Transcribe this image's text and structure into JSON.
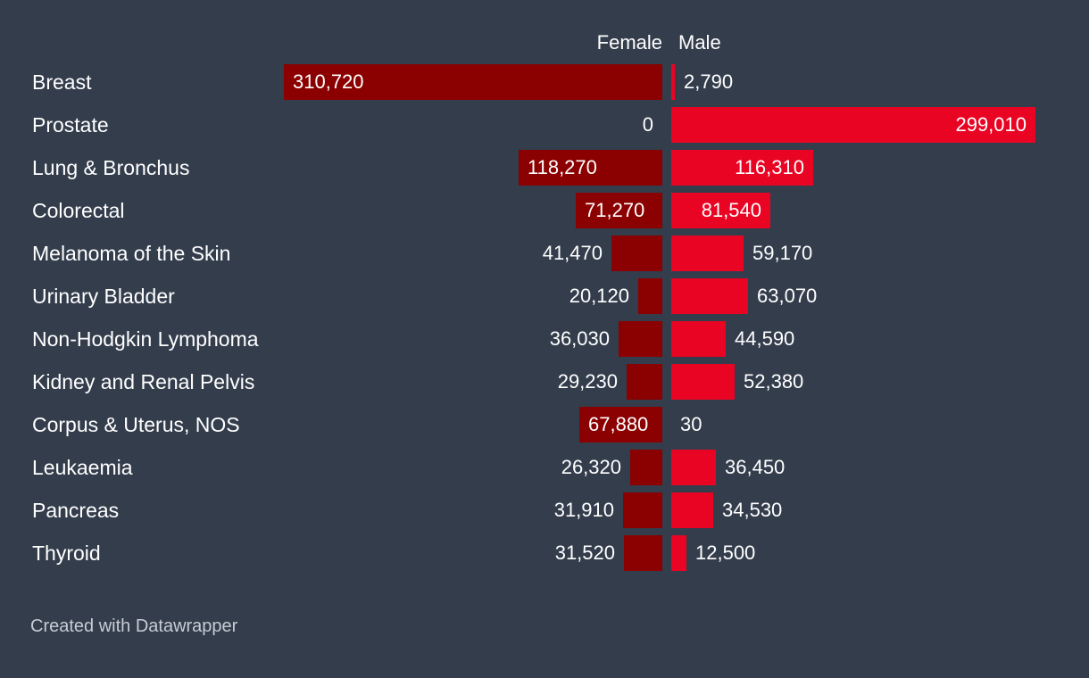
{
  "chart_data": {
    "type": "bar",
    "orientation": "horizontal-diverging",
    "series": [
      {
        "name": "Female",
        "color": "#8b0000",
        "labels": [
          "310,720",
          "0",
          "118,270",
          "71,270",
          "41,470",
          "20,120",
          "36,030",
          "29,230",
          "67,880",
          "26,320",
          "31,910",
          "31,520"
        ],
        "values": [
          310720,
          0,
          118270,
          71270,
          41470,
          20120,
          36030,
          29230,
          67880,
          26320,
          31910,
          31520
        ]
      },
      {
        "name": "Male",
        "color": "#e90423",
        "labels": [
          "2,790",
          "299,010",
          "116,310",
          "81,540",
          "59,170",
          "63,070",
          "44,590",
          "52,380",
          "30",
          "36,450",
          "34,530",
          "12,500"
        ],
        "values": [
          2790,
          299010,
          116310,
          81540,
          59170,
          63070,
          44590,
          52380,
          30,
          36450,
          34530,
          12500
        ]
      }
    ],
    "categories": [
      "Breast",
      "Prostate",
      "Lung & Bronchus",
      "Colorectal",
      "Melanoma of the Skin",
      "Urinary Bladder",
      "Non-Hodgkin Lymphoma",
      "Kidney and Renal Pelvis",
      "Corpus & Uterus, NOS",
      "Leukaemia",
      "Pancreas",
      "Thyroid"
    ],
    "title": "",
    "xlim": [
      0,
      310720
    ]
  },
  "footer": "Created with Datawrapper",
  "colors": {
    "background": "#333d4c",
    "female": "#8b0000",
    "male": "#e90423",
    "text": "#ffffff",
    "footer": "#c7ccd4"
  }
}
